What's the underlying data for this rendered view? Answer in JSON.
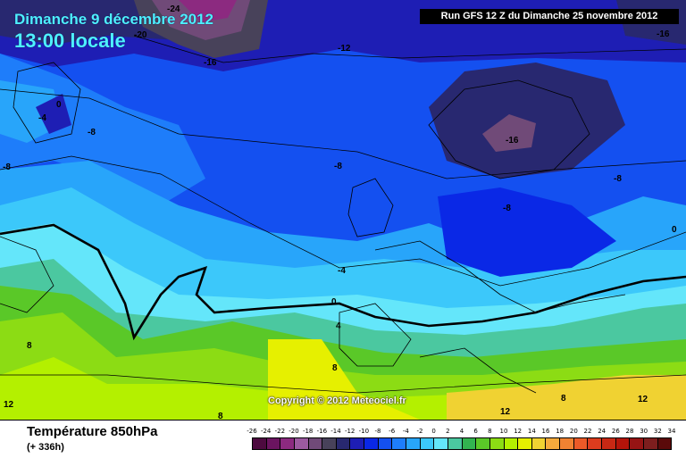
{
  "header": {
    "date": "Dimanche 9 décembre 2012",
    "time": "13:00 locale",
    "run": "Run GFS 12 Z du Dimanche 25 novembre 2012"
  },
  "footer": {
    "parameter": "Température 850hPa",
    "lead_time": "(+ 336h)",
    "copyright": "Copyright © 2012 Meteociel.fr"
  },
  "legend": {
    "ticks": [
      "-26",
      "-24",
      "-22",
      "-20",
      "-18",
      "-16",
      "-14",
      "-12",
      "-10",
      "-8",
      "-6",
      "-4",
      "-2",
      "0",
      "2",
      "4",
      "6",
      "8",
      "10",
      "12",
      "14",
      "16",
      "18",
      "20",
      "22",
      "24",
      "26",
      "28",
      "30",
      "32",
      "34"
    ],
    "colors": [
      "#4d0a3f",
      "#6b1460",
      "#8c2a80",
      "#9c5aa0",
      "#704a78",
      "#48425a",
      "#282870",
      "#1e1eb4",
      "#0a28e6",
      "#1450f0",
      "#1e7dfa",
      "#28a5fa",
      "#3cc8fa",
      "#64e6fa",
      "#4bc8a0",
      "#32b450",
      "#5ac828",
      "#8cdc14",
      "#b4f000",
      "#e6f000",
      "#f0d232",
      "#f5aa3c",
      "#f08232",
      "#eb5a28",
      "#dc3c1e",
      "#c82814",
      "#b4140a",
      "#961414",
      "#7d1e1e",
      "#5a0a0a"
    ]
  },
  "isotherm_labels": [
    {
      "text": "-24"
    },
    {
      "text": "-20"
    },
    {
      "text": "-16"
    },
    {
      "text": "-12"
    },
    {
      "text": "-16"
    },
    {
      "text": "-4"
    },
    {
      "text": "0"
    },
    {
      "text": "-8"
    },
    {
      "text": "-8"
    },
    {
      "text": "-8"
    },
    {
      "text": "-16"
    },
    {
      "text": "-8"
    },
    {
      "text": "-8"
    },
    {
      "text": "0"
    },
    {
      "text": "-4"
    },
    {
      "text": "0"
    },
    {
      "text": "4"
    },
    {
      "text": "8"
    },
    {
      "text": "8"
    },
    {
      "text": "12"
    },
    {
      "text": "8"
    },
    {
      "text": "8"
    },
    {
      "text": "12"
    },
    {
      "text": "12"
    }
  ]
}
